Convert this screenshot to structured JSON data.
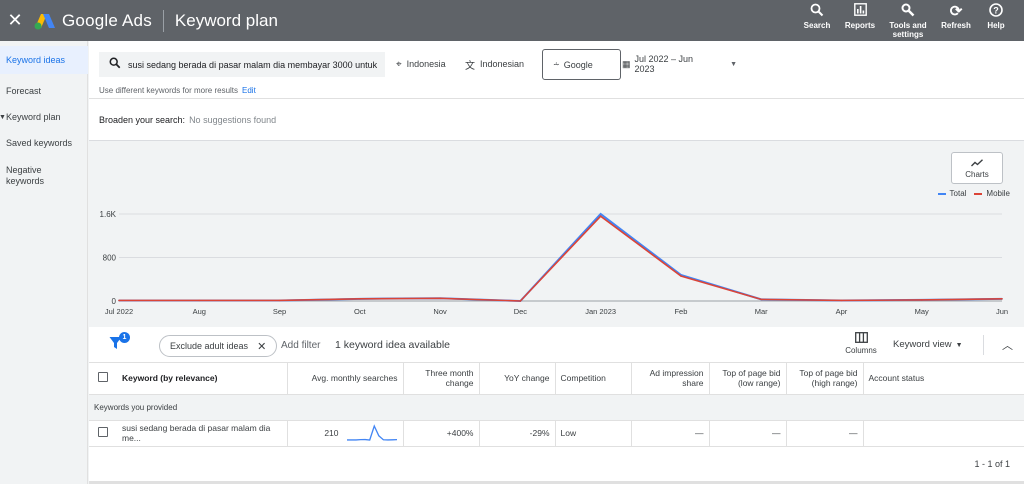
{
  "topbar": {
    "close_icon": "close-icon",
    "brand": "Google Ads",
    "title": "Keyword plan",
    "actions": [
      {
        "label": "Search",
        "icon": "search-icon"
      },
      {
        "label": "Reports",
        "icon": "bar-chart-icon"
      },
      {
        "label": "Tools and settings",
        "icon": "wrench-icon"
      },
      {
        "label": "Refresh",
        "icon": "refresh-icon"
      },
      {
        "label": "Help",
        "icon": "help-icon"
      }
    ]
  },
  "sidebar": {
    "items": [
      {
        "label": "Keyword ideas",
        "active": true
      },
      {
        "label": "Forecast"
      },
      {
        "label": "Keyword plan"
      },
      {
        "label": "Saved keywords"
      },
      {
        "label": "Negative keywords"
      }
    ]
  },
  "search": {
    "query": "susi sedang berada di pasar malam dia membayar 3000 untuk",
    "location": "Indonesia",
    "language": "Indonesian",
    "network": "Google",
    "date_range": "Jul 2022 – Jun 2023",
    "hint": "Use different keywords for more results",
    "hint_link": "Edit"
  },
  "broaden": {
    "label": "Broaden your search:",
    "value": "No suggestions found"
  },
  "chart_controls": {
    "charts_button": "Charts",
    "legend": [
      {
        "name": "Total",
        "color": "#4285f4"
      },
      {
        "name": "Mobile",
        "color": "#db4437"
      }
    ]
  },
  "chart_data": {
    "type": "line",
    "categories": [
      "Jul 2022",
      "Aug",
      "Sep",
      "Oct",
      "Nov",
      "Dec",
      "Jan 2023",
      "Feb",
      "Mar",
      "Apr",
      "May",
      "Jun"
    ],
    "y_ticks": [
      "0",
      "800",
      "1.6K"
    ],
    "ylim": [
      0,
      1600
    ],
    "series": [
      {
        "name": "Total",
        "color": "#4285f4",
        "values": [
          10,
          10,
          10,
          40,
          50,
          0,
          1600,
          480,
          30,
          10,
          20,
          40
        ]
      },
      {
        "name": "Mobile",
        "color": "#db4437",
        "values": [
          10,
          10,
          10,
          40,
          50,
          0,
          1560,
          460,
          30,
          10,
          20,
          40
        ]
      }
    ]
  },
  "toolbar": {
    "filter_badge": "1",
    "exclude_chip": "Exclude adult ideas",
    "add_filter": "Add filter",
    "ideas_count": "1 keyword idea available",
    "columns_label": "Columns",
    "view_label": "Keyword view"
  },
  "table": {
    "headers": [
      "Keyword (by relevance)",
      "Avg. monthly searches",
      "Three month change",
      "YoY change",
      "Competition",
      "Ad impression share",
      "Top of page bid (low range)",
      "Top of page bid (high range)",
      "Account status"
    ],
    "group_label": "Keywords you provided",
    "rows": [
      {
        "keyword": "susi sedang berada di pasar malam dia me...",
        "avg_searches": "210",
        "three_month": "+400%",
        "yoy": "-29%",
        "competition": "Low",
        "ad_share": "—",
        "bid_low": "—",
        "bid_high": "—",
        "account_status": "",
        "trend": [
          10,
          10,
          10,
          40,
          50,
          0,
          1600,
          480,
          30,
          10,
          20,
          40
        ]
      }
    ],
    "pagination": "1 - 1 of 1"
  }
}
